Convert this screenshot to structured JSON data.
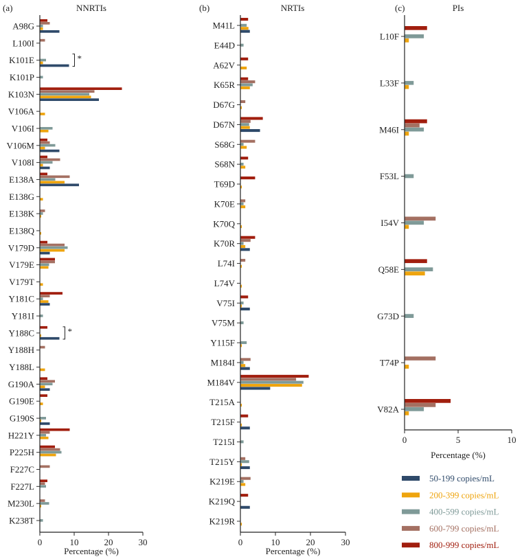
{
  "chart_data": {
    "type": "bar",
    "orientation": "horizontal",
    "grid": false,
    "legend_placement": "bottom-right",
    "series_names": [
      "50-199 copies/mL",
      "200-399 copies/mL",
      "400-599 copies/mL",
      "600-799 copies/mL",
      "800-999 copies/mL"
    ],
    "series_colors": [
      "#2f4a6a",
      "#eea40e",
      "#7f9a98",
      "#a47062",
      "#a11e0e"
    ],
    "panels": [
      {
        "panel_label": "(a)",
        "title": "NNRTIs",
        "xlabel": "Percentage (%)",
        "xlim": [
          0,
          30
        ],
        "xticks": [
          0,
          10,
          20,
          30
        ],
        "categories": [
          "A98G",
          "L100I",
          "K101E",
          "K101P",
          "K103N",
          "V106A",
          "V106I",
          "V106M",
          "V108I",
          "E138A",
          "E138G",
          "E138K",
          "E138Q",
          "V179D",
          "V179E",
          "V179T",
          "Y181C",
          "Y181I",
          "Y188C",
          "Y188H",
          "Y188L",
          "G190A",
          "G190E",
          "G190S",
          "H221Y",
          "P225H",
          "F227C",
          "F227L",
          "M230L",
          "K238T"
        ],
        "values": [
          [
            5.7,
            0.9,
            0.9,
            2.9,
            2.2
          ],
          [
            0,
            0,
            0,
            1.5,
            0
          ],
          [
            8.5,
            0.9,
            1.8,
            0,
            0
          ],
          [
            0,
            0,
            0.9,
            0,
            0
          ],
          [
            17.2,
            14.9,
            14.4,
            15.9,
            23.9
          ],
          [
            0,
            1.5,
            0,
            0,
            0
          ],
          [
            0,
            2.5,
            3.7,
            0,
            0
          ],
          [
            5.7,
            1.5,
            4.5,
            2.9,
            2.2
          ],
          [
            2.9,
            0.9,
            3.7,
            5.9,
            2.2
          ],
          [
            11.4,
            7.2,
            4.5,
            8.7,
            2.2
          ],
          [
            0,
            0.9,
            0,
            0,
            0
          ],
          [
            0,
            0.4,
            0.9,
            1.5,
            0
          ],
          [
            0,
            0.4,
            0,
            0,
            0
          ],
          [
            2.9,
            7.2,
            8.1,
            7.2,
            2.2
          ],
          [
            0,
            2.5,
            2.7,
            4.4,
            4.4
          ],
          [
            0,
            0.9,
            0,
            0,
            0
          ],
          [
            2.9,
            2.5,
            0.9,
            2.9,
            6.6
          ],
          [
            0,
            0,
            0.9,
            0,
            0
          ],
          [
            5.7,
            0.4,
            0,
            0,
            2.2
          ],
          [
            0,
            0,
            0,
            1.5,
            0
          ],
          [
            0,
            1.5,
            0,
            0,
            0
          ],
          [
            2.9,
            1.5,
            3.7,
            4.4,
            2.2
          ],
          [
            0,
            0.9,
            0,
            0,
            2.2
          ],
          [
            2.9,
            0.4,
            1.8,
            0,
            0
          ],
          [
            0,
            2.5,
            1.8,
            2.9,
            8.7
          ],
          [
            0,
            4.7,
            6.3,
            5.9,
            4.4
          ],
          [
            0,
            0,
            0,
            2.9,
            0
          ],
          [
            0,
            0,
            1.8,
            1.5,
            2.2
          ],
          [
            0,
            0.4,
            2.7,
            1.5,
            0
          ],
          [
            0,
            0,
            0.9,
            0,
            0
          ]
        ],
        "annotations": [
          {
            "category": "K101E",
            "text": "*"
          },
          {
            "category": "Y188C",
            "text": "*"
          }
        ]
      },
      {
        "panel_label": "(b)",
        "title": "NRTIs",
        "xlabel": "Percentage (%)",
        "xlim": [
          0,
          30
        ],
        "xticks": [
          0,
          10,
          20,
          30
        ],
        "categories": [
          "M41L",
          "E44D",
          "A62V",
          "K65R",
          "D67G",
          "D67N",
          "S68G",
          "S68N",
          "T69D",
          "K70E",
          "K70Q",
          "K70R",
          "L74I",
          "L74V",
          "V75I",
          "V75M",
          "Y115F",
          "M184I",
          "M184V",
          "T215A",
          "T215F",
          "T215I",
          "T215Y",
          "K219E",
          "K219Q",
          "K219R"
        ],
        "values": [
          [
            2.7,
            2.3,
            1.8,
            0,
            2.2
          ],
          [
            0,
            0,
            0.9,
            0,
            0
          ],
          [
            0,
            1.8,
            0,
            0,
            2.2
          ],
          [
            0,
            2.7,
            3.5,
            4.2,
            2.2
          ],
          [
            0,
            0.4,
            0,
            1.4,
            0
          ],
          [
            5.6,
            2.7,
            2.5,
            2.9,
            6.4
          ],
          [
            0,
            1.8,
            0.9,
            4.2,
            0
          ],
          [
            0,
            1.4,
            0.9,
            0,
            2.2
          ],
          [
            0,
            0.4,
            0,
            0,
            4.2
          ],
          [
            0,
            1.4,
            0.9,
            1.4,
            0
          ],
          [
            0,
            0.4,
            0,
            0,
            0
          ],
          [
            2.7,
            1.4,
            0.9,
            2.9,
            4.2
          ],
          [
            0,
            0.4,
            0,
            1.4,
            0
          ],
          [
            0,
            0.4,
            0,
            0,
            0
          ],
          [
            2.7,
            0.4,
            0.9,
            0,
            2.2
          ],
          [
            0,
            0,
            0.9,
            0,
            0
          ],
          [
            0,
            0.4,
            1.8,
            0,
            0
          ],
          [
            2.7,
            1.4,
            0.9,
            2.9,
            0
          ],
          [
            8.5,
            17.6,
            18.0,
            15.9,
            19.5
          ],
          [
            0,
            0.4,
            0,
            0,
            0
          ],
          [
            2.7,
            0.4,
            0,
            0,
            2.2
          ],
          [
            0,
            0,
            0.9,
            0,
            0
          ],
          [
            2.7,
            0.4,
            2.5,
            1.4,
            0
          ],
          [
            0,
            1.4,
            0.9,
            2.9,
            0
          ],
          [
            2.7,
            0,
            0,
            0,
            2.2
          ],
          [
            0,
            0.4,
            0,
            0,
            0
          ]
        ]
      },
      {
        "panel_label": "(c)",
        "title": "PIs",
        "xlabel": "Percentage (%)",
        "xlim": [
          0,
          10
        ],
        "xticks": [
          0,
          5,
          10
        ],
        "categories": [
          "L10F",
          "L33F",
          "M46I",
          "F53L",
          "I54V",
          "Q58E",
          "G73D",
          "T74P",
          "V82A"
        ],
        "values": [
          [
            0,
            0.4,
            1.8,
            0,
            2.1
          ],
          [
            0,
            0.4,
            0.85,
            0,
            0
          ],
          [
            0,
            0.4,
            1.8,
            1.4,
            2.1
          ],
          [
            0,
            0,
            0.85,
            0,
            0
          ],
          [
            0,
            0.4,
            1.8,
            2.9,
            0
          ],
          [
            0,
            1.9,
            2.65,
            0,
            2.1
          ],
          [
            0,
            0,
            0.85,
            0,
            0
          ],
          [
            0,
            0.4,
            0,
            2.9,
            0
          ],
          [
            0,
            0.4,
            1.8,
            2.9,
            4.3
          ]
        ]
      }
    ]
  }
}
